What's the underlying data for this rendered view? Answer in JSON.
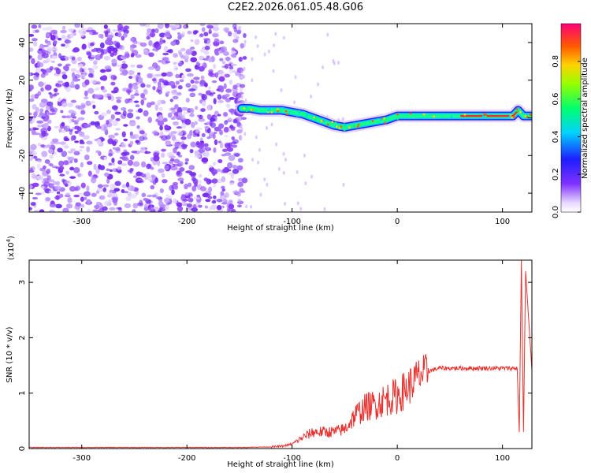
{
  "title": "C2E2.2026.061.05.48.G06",
  "chart_data": [
    {
      "type": "heatmap",
      "xlabel": "Height of straight line (km)",
      "ylabel": "Frequency (Hz)",
      "xlim": [
        -350,
        128
      ],
      "ylim": [
        -50,
        50
      ],
      "x_ticks": [
        -300,
        -200,
        -100,
        0,
        100
      ],
      "y_ticks": [
        -40,
        -20,
        0,
        20,
        40
      ],
      "colorbar": {
        "label": "Normalized spectral amplitude",
        "range": [
          0,
          1
        ],
        "ticks": [
          0.0,
          0.2,
          0.4,
          0.6,
          0.8
        ]
      },
      "noise_region_x": [
        -350,
        -145
      ],
      "signal_track": {
        "x": [
          -148,
          -140,
          -130,
          -120,
          -110,
          -100,
          -90,
          -80,
          -70,
          -60,
          -50,
          -40,
          -30,
          -20,
          -10,
          0,
          10,
          20,
          40,
          60,
          80,
          100,
          110,
          115,
          120,
          128
        ],
        "y": [
          5,
          5,
          4,
          4,
          4,
          3,
          2,
          0,
          -2,
          -4,
          -5,
          -4,
          -3,
          -2,
          -1,
          1,
          1,
          1,
          1,
          1,
          1,
          1,
          1,
          4,
          1,
          1
        ]
      }
    },
    {
      "type": "line",
      "xlabel": "Height of straight line (km)",
      "ylabel": "SNR (10 * v/v)",
      "y_multiplier": "(x10",
      "y_multiplier_exp": "4",
      "y_multiplier_close": ")",
      "xlim": [
        -350,
        128
      ],
      "ylim": [
        0,
        3.4
      ],
      "x_ticks": [
        -300,
        -200,
        -100,
        0,
        100
      ],
      "y_ticks": [
        0,
        1,
        2,
        3
      ],
      "series": [
        {
          "color": "#e8312e",
          "x": [
            -350,
            -300,
            -200,
            -150,
            -120,
            -110,
            -100,
            -90,
            -80,
            -70,
            -60,
            -50,
            -40,
            -30,
            -20,
            -10,
            0,
            10,
            20,
            30,
            40,
            60,
            80,
            100,
            110,
            114,
            116,
            118,
            120,
            122,
            128
          ],
          "y": [
            0.02,
            0.02,
            0.02,
            0.02,
            0.03,
            0.04,
            0.08,
            0.2,
            0.3,
            0.3,
            0.3,
            0.35,
            0.6,
            0.75,
            0.8,
            0.9,
            0.95,
            1.1,
            1.3,
            1.4,
            1.45,
            1.45,
            1.45,
            1.45,
            1.45,
            1.45,
            0.3,
            3.4,
            0.3,
            3.2,
            1.42
          ]
        }
      ]
    }
  ]
}
